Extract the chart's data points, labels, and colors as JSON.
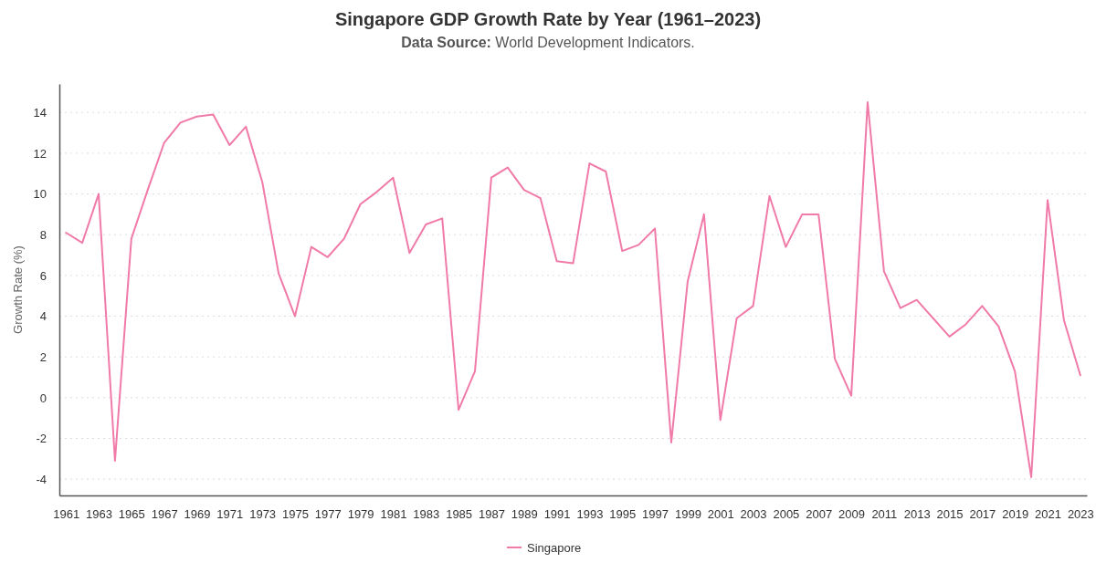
{
  "chart_data": {
    "type": "line",
    "title": "Singapore GDP Growth Rate by Year (1961–2023)",
    "subtitle": "Data Source: World Development Indicators.",
    "ylabel": "Growth Rate (%)",
    "x": [
      1961,
      1962,
      1963,
      1964,
      1965,
      1966,
      1967,
      1968,
      1969,
      1970,
      1971,
      1972,
      1973,
      1974,
      1975,
      1976,
      1977,
      1978,
      1979,
      1980,
      1981,
      1982,
      1983,
      1984,
      1985,
      1986,
      1987,
      1988,
      1989,
      1990,
      1991,
      1992,
      1993,
      1994,
      1995,
      1996,
      1997,
      1998,
      1999,
      2000,
      2001,
      2002,
      2003,
      2004,
      2005,
      2006,
      2007,
      2008,
      2009,
      2010,
      2011,
      2012,
      2013,
      2014,
      2015,
      2016,
      2017,
      2018,
      2019,
      2020,
      2021,
      2022,
      2023
    ],
    "series": [
      {
        "name": "Singapore",
        "color": "#f07aa8",
        "values": [
          8.1,
          7.6,
          10.0,
          -3.1,
          7.8,
          10.2,
          12.5,
          13.5,
          13.8,
          13.9,
          12.4,
          13.3,
          10.6,
          6.1,
          4.0,
          7.4,
          6.9,
          7.8,
          9.5,
          10.1,
          10.8,
          7.1,
          8.5,
          8.8,
          -0.6,
          1.3,
          10.8,
          11.3,
          10.2,
          9.8,
          6.7,
          6.6,
          11.5,
          11.1,
          7.2,
          7.5,
          8.3,
          -2.2,
          5.7,
          9.0,
          -1.1,
          3.9,
          4.5,
          9.9,
          7.4,
          9.0,
          9.0,
          1.9,
          0.1,
          14.5,
          6.2,
          4.4,
          4.8,
          3.9,
          3.0,
          3.6,
          4.5,
          3.5,
          1.3,
          -3.9,
          9.7,
          3.8,
          1.1
        ]
      }
    ],
    "xlim": [
      1960.6,
      2023.4
    ],
    "xticks": [
      1961,
      1963,
      1965,
      1967,
      1969,
      1971,
      1973,
      1975,
      1977,
      1979,
      1981,
      1983,
      1985,
      1987,
      1989,
      1991,
      1993,
      1995,
      1997,
      1999,
      2001,
      2003,
      2005,
      2007,
      2009,
      2011,
      2013,
      2015,
      2017,
      2019,
      2021,
      2023
    ],
    "ylim": [
      -4.8,
      15.4
    ],
    "yticks": [
      -4,
      -2,
      0,
      2,
      4,
      6,
      8,
      10,
      12,
      14
    ],
    "grid": "y",
    "legend": "bottom"
  }
}
